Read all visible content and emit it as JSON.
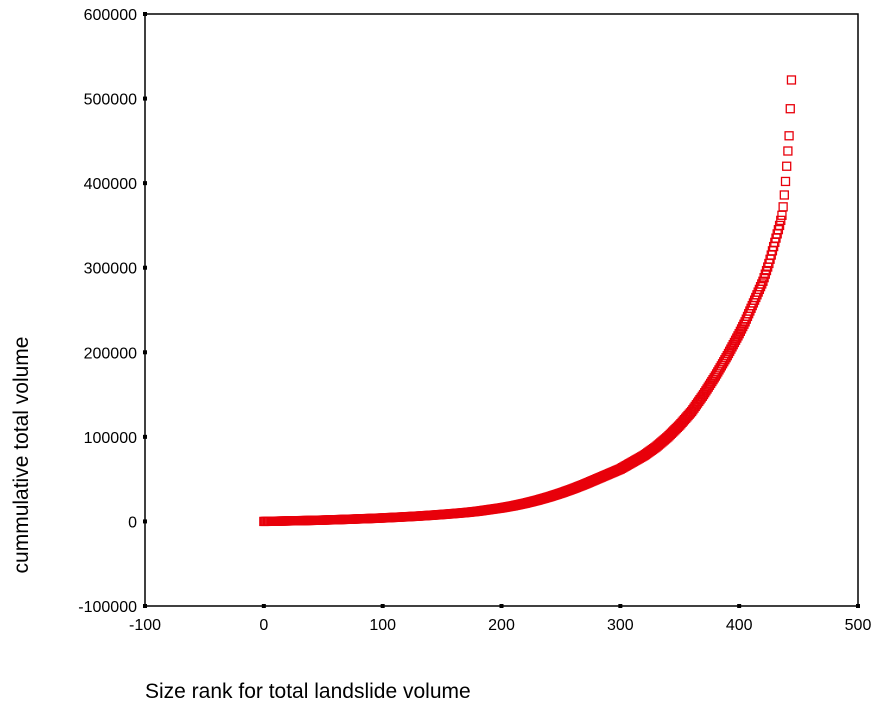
{
  "chart_data": {
    "type": "scatter",
    "title": "",
    "xlabel": "Size rank for total landslide volume",
    "ylabel": "cummulative total volume",
    "xlim": [
      -100,
      500
    ],
    "ylim": [
      -100000,
      600000
    ],
    "x_ticks": [
      -100,
      0,
      100,
      200,
      300,
      400,
      500
    ],
    "y_ticks": [
      -100000,
      0,
      100000,
      200000,
      300000,
      400000,
      500000,
      600000
    ],
    "x_tick_labels": [
      "-100",
      "0",
      "100",
      "200",
      "300",
      "400",
      "500"
    ],
    "y_tick_labels": [
      "-100000",
      "0",
      "100000",
      "200000",
      "300000",
      "400000",
      "500000",
      "600000"
    ],
    "grid": false,
    "legend": "none",
    "marker": "open-square",
    "marker_color": "#e8000b",
    "series": [
      {
        "points": [
          [
            0,
            0
          ],
          [
            10,
            300
          ],
          [
            20,
            600
          ],
          [
            30,
            900
          ],
          [
            40,
            1200
          ],
          [
            50,
            1600
          ],
          [
            60,
            2000
          ],
          [
            70,
            2500
          ],
          [
            80,
            3000
          ],
          [
            90,
            3500
          ],
          [
            100,
            4100
          ],
          [
            110,
            4800
          ],
          [
            120,
            5500
          ],
          [
            130,
            6300
          ],
          [
            140,
            7200
          ],
          [
            150,
            8200
          ],
          [
            160,
            9300
          ],
          [
            170,
            10500
          ],
          [
            180,
            12000
          ],
          [
            190,
            14000
          ],
          [
            200,
            16000
          ],
          [
            210,
            18500
          ],
          [
            220,
            21500
          ],
          [
            230,
            25000
          ],
          [
            240,
            29000
          ],
          [
            250,
            33500
          ],
          [
            260,
            38500
          ],
          [
            270,
            44000
          ],
          [
            280,
            50000
          ],
          [
            290,
            56000
          ],
          [
            300,
            62000
          ],
          [
            310,
            70000
          ],
          [
            320,
            78000
          ],
          [
            330,
            88000
          ],
          [
            340,
            100000
          ],
          [
            350,
            114000
          ],
          [
            360,
            130000
          ],
          [
            370,
            150000
          ],
          [
            380,
            172000
          ],
          [
            390,
            196000
          ],
          [
            400,
            222000
          ],
          [
            405,
            236000
          ],
          [
            410,
            252000
          ],
          [
            415,
            268000
          ],
          [
            420,
            284000
          ],
          [
            425,
            305000
          ],
          [
            428,
            320000
          ],
          [
            430,
            330000
          ],
          [
            432,
            340000
          ],
          [
            434,
            350000
          ],
          [
            436,
            362000
          ],
          [
            437,
            372000
          ],
          [
            438,
            386000
          ],
          [
            439,
            402000
          ],
          [
            440,
            420000
          ],
          [
            441,
            438000
          ],
          [
            442,
            456000
          ],
          [
            443,
            488000
          ],
          [
            444,
            522000
          ]
        ]
      }
    ]
  }
}
